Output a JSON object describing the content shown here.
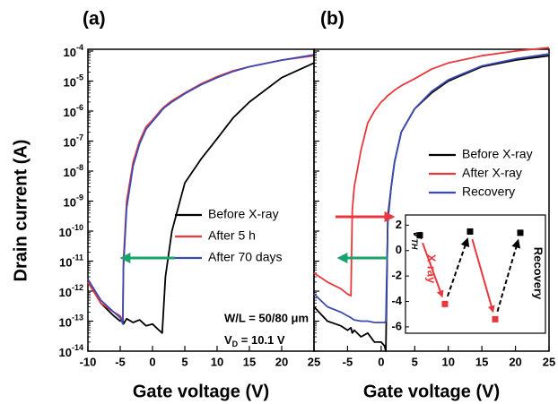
{
  "chart_data": [
    {
      "type": "line",
      "title": "(a)",
      "ylabel": "Drain current (A)",
      "xlabel": "Gate voltage (V)",
      "log_y": true,
      "xlim": [
        -10,
        25
      ],
      "ylim": [
        1e-14,
        0.0001
      ],
      "xticks": [
        -10,
        -5,
        0,
        5,
        10,
        15,
        20,
        25
      ],
      "yticks": [
        {
          "value": 0.0001,
          "label": "10-4"
        },
        {
          "value": 1e-05,
          "label": "10-5"
        },
        {
          "value": 1e-06,
          "label": "10-6"
        },
        {
          "value": 1e-07,
          "label": "10-7"
        },
        {
          "value": 1e-08,
          "label": "10-8"
        },
        {
          "value": 1e-09,
          "label": "10-9"
        },
        {
          "value": 1e-10,
          "label": "10-10"
        },
        {
          "value": 1e-11,
          "label": "10-11"
        },
        {
          "value": 1e-12,
          "label": "10-12"
        },
        {
          "value": 1e-13,
          "label": "10-13"
        },
        {
          "value": 1e-14,
          "label": "10-14"
        }
      ],
      "x": [
        -10,
        -8,
        -6,
        -5,
        -4.6,
        -4.5,
        -4,
        -3,
        -2,
        -1,
        0,
        1,
        1.5,
        2,
        3,
        5,
        7.5,
        10,
        12.5,
        15,
        20,
        25
      ],
      "series": [
        {
          "name": "Before X-ray",
          "color": "#000000",
          "values": [
            2e-12,
            4e-13,
            1.5e-13,
            1e-13,
            1.2e-13,
            8e-14,
            1.2e-13,
            9e-14,
            1.1e-13,
            7e-14,
            8e-14,
            5e-14,
            4e-14,
            3e-12,
            1e-10,
            4e-09,
            2.5e-08,
            1.2e-07,
            6e-07,
            2e-06,
            1.3e-05,
            4e-05
          ]
        },
        {
          "name": "After 5 h",
          "color": "#e8383d",
          "values": [
            2e-12,
            4e-13,
            2e-13,
            1.5e-13,
            1e-13,
            1e-11,
            1e-09,
            2e-08,
            1e-07,
            3e-07,
            5e-07,
            9e-07,
            1.2e-06,
            1.5e-06,
            2.2e-06,
            4e-06,
            8e-06,
            1.4e-05,
            2.2e-05,
            3e-05,
            5e-05,
            7e-05
          ]
        },
        {
          "name": "After 70 days",
          "color": "#3b4bb0",
          "values": [
            2.5e-12,
            5e-13,
            2e-13,
            1.3e-13,
            8e-14,
            6e-12,
            6e-10,
            1.5e-08,
            8e-08,
            2.5e-07,
            4.5e-07,
            8e-07,
            1.1e-06,
            1.4e-06,
            2e-06,
            3.8e-06,
            7.5e-06,
            1.3e-05,
            2.1e-05,
            3e-05,
            5e-05,
            7.5e-05
          ]
        }
      ],
      "annotations": [
        "W/L = 50/80 μm",
        "VD = 10.1 V"
      ]
    },
    {
      "type": "line",
      "title": "(b)",
      "xlabel": "Gate voltage (V)",
      "log_y": true,
      "xlim": [
        -10,
        25
      ],
      "ylim": [
        1e-14,
        0.0001
      ],
      "xticks": [
        -5,
        0,
        5,
        10,
        15,
        20,
        25
      ],
      "x": [
        -10,
        -8,
        -6,
        -5,
        -4.5,
        -4.3,
        -4,
        -3,
        -2,
        -1,
        0,
        0.5,
        0.7,
        1,
        1.5,
        2,
        3,
        5,
        7.5,
        10,
        15,
        20,
        25
      ],
      "series": [
        {
          "name": "Before X-ray",
          "color": "#000000",
          "values": [
            3e-13,
            1e-13,
            7e-14,
            5e-14,
            6e-14,
            4e-14,
            5e-14,
            3e-14,
            4e-14,
            2e-14,
            2e-14,
            1.5e-14,
            1e-14,
            3e-10,
            3e-09,
            2e-08,
            2e-07,
            1.2e-06,
            4e-06,
            1e-05,
            3e-05,
            5e-05,
            7e-05
          ]
        },
        {
          "name": "After X-ray",
          "color": "#e8383d",
          "values": [
            4e-12,
            2e-12,
            1.2e-12,
            8e-13,
            7e-13,
            5e-10,
            3e-09,
            5e-08,
            4e-07,
            1e-06,
            2e-06,
            2.5e-06,
            2.8e-06,
            3.3e-06,
            4e-06,
            5e-06,
            7e-06,
            1.2e-05,
            2.5e-05,
            4e-05,
            7e-05,
            0.0001,
            0.00013
          ]
        },
        {
          "name": "Recovery",
          "color": "#3b4bb0",
          "values": [
            8e-13,
            3e-13,
            2e-13,
            1.5e-13,
            1.3e-13,
            1.2e-13,
            1.1e-13,
            1e-13,
            1e-13,
            9e-14,
            9e-14,
            9e-14,
            1e-13,
            2e-10,
            3e-09,
            2e-08,
            2e-07,
            1.2e-06,
            4.5e-06,
            1.1e-05,
            3.2e-05,
            5.5e-05,
            8e-05
          ]
        }
      ]
    },
    {
      "type": "scatter",
      "ylabel": "VTH",
      "xlim": [
        0.43,
        6
      ],
      "ylim": [
        -6.5,
        2.8
      ],
      "yticks": [
        2,
        0,
        -2,
        -4,
        -6
      ],
      "series": [
        {
          "color": "#000000",
          "x": [
            1,
            3,
            5
          ],
          "values": [
            1.2,
            1.5,
            1.4
          ]
        },
        {
          "color": "#e8383d",
          "x": [
            2,
            4
          ],
          "values": [
            -4.2,
            -5.4
          ]
        }
      ],
      "annotations": [
        "X-ray",
        "Recovery"
      ]
    }
  ]
}
